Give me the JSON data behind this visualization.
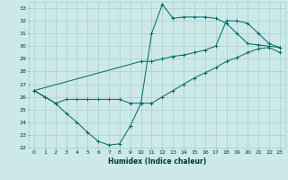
{
  "xlabel": "Humidex (Indice chaleur)",
  "bg_color": "#cce8e8",
  "grid_color": "#9fc8c8",
  "line_color": "#006666",
  "xlim": [
    -0.5,
    23.5
  ],
  "ylim": [
    22,
    33.5
  ],
  "xticks": [
    0,
    1,
    2,
    3,
    4,
    5,
    6,
    7,
    8,
    9,
    10,
    11,
    12,
    13,
    14,
    15,
    16,
    17,
    18,
    19,
    20,
    21,
    22,
    23
  ],
  "yticks": [
    22,
    23,
    24,
    25,
    26,
    27,
    28,
    29,
    30,
    31,
    32,
    33
  ],
  "line1_x": [
    0,
    1,
    2,
    3,
    4,
    5,
    6,
    7,
    8,
    9,
    10,
    11,
    12,
    13,
    14,
    15,
    16,
    17,
    18,
    19,
    20,
    21,
    22,
    23
  ],
  "line1_y": [
    26.5,
    26.0,
    25.5,
    24.7,
    24.0,
    23.2,
    22.5,
    22.2,
    22.3,
    23.7,
    25.5,
    31.0,
    33.3,
    32.2,
    32.3,
    32.3,
    32.3,
    32.2,
    31.8,
    31.0,
    30.2,
    30.1,
    30.0,
    29.9
  ],
  "line2_x": [
    0,
    10,
    11,
    12,
    13,
    14,
    15,
    16,
    17,
    18,
    19,
    20,
    21,
    22,
    23
  ],
  "line2_y": [
    26.5,
    28.8,
    28.8,
    29.0,
    29.2,
    29.3,
    29.5,
    29.7,
    30.0,
    32.0,
    32.0,
    31.8,
    31.0,
    30.2,
    29.9
  ],
  "line3_x": [
    0,
    1,
    2,
    3,
    4,
    5,
    6,
    7,
    8,
    9,
    10,
    11,
    12,
    13,
    14,
    15,
    16,
    17,
    18,
    19,
    20,
    21,
    22,
    23
  ],
  "line3_y": [
    26.5,
    26.0,
    25.5,
    25.8,
    25.8,
    25.8,
    25.8,
    25.8,
    25.8,
    25.5,
    25.5,
    25.5,
    26.0,
    26.5,
    27.0,
    27.5,
    27.9,
    28.3,
    28.8,
    29.1,
    29.5,
    29.8,
    29.9,
    29.5
  ]
}
